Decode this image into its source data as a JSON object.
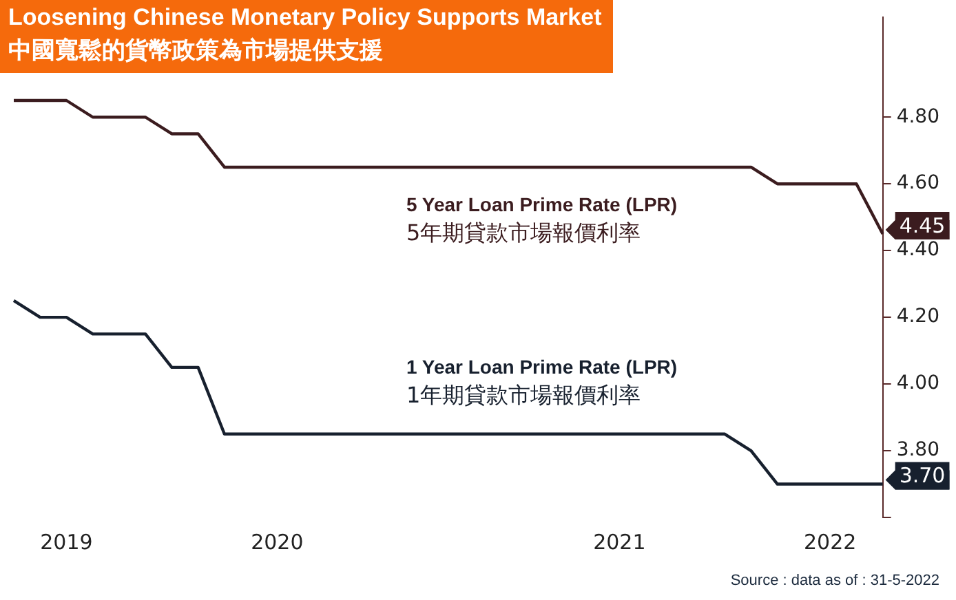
{
  "chart_data": {
    "type": "line",
    "title": "Loosening Chinese Monetary Policy Supports Market",
    "subtitle": "中國寬鬆的貨幣政策為市場提供支援",
    "categories": [
      null,
      null,
      "2019",
      null,
      null,
      null,
      null,
      null,
      null,
      null,
      "2020",
      null,
      null,
      null,
      null,
      null,
      null,
      null,
      null,
      null,
      null,
      null,
      null,
      "2021",
      null,
      null,
      null,
      null,
      null,
      null,
      null,
      "2022",
      null,
      null
    ],
    "series": [
      {
        "name": "5 Year Loan Prime Rate (LPR)\n5年期貸款市場報價利率",
        "color": "#3b1c1f",
        "values": [
          4.85,
          4.85,
          4.85,
          4.8,
          4.8,
          4.8,
          4.75,
          4.75,
          4.65,
          4.65,
          4.65,
          4.65,
          4.65,
          4.65,
          4.65,
          4.65,
          4.65,
          4.65,
          4.65,
          4.65,
          4.65,
          4.65,
          4.65,
          4.65,
          4.65,
          4.65,
          4.65,
          4.65,
          4.65,
          4.6,
          4.6,
          4.6,
          4.6,
          4.45
        ],
        "value_labels": [
          null,
          null,
          null,
          null,
          null,
          null,
          null,
          null,
          null,
          null,
          null,
          null,
          null,
          null,
          null,
          null,
          null,
          null,
          null,
          null,
          null,
          null,
          null,
          null,
          null,
          null,
          null,
          null,
          null,
          null,
          null,
          null,
          null,
          "4.45"
        ]
      },
      {
        "name": "1 Year Loan Prime Rate (LPR)\n1年期貸款市場報價利率",
        "color": "#17202e",
        "values": [
          4.25,
          4.2,
          4.2,
          4.15,
          4.15,
          4.15,
          4.05,
          4.05,
          3.85,
          3.85,
          3.85,
          3.85,
          3.85,
          3.85,
          3.85,
          3.85,
          3.85,
          3.85,
          3.85,
          3.85,
          3.85,
          3.85,
          3.85,
          3.85,
          3.85,
          3.85,
          3.85,
          3.85,
          3.8,
          3.7,
          3.7,
          3.7,
          3.7,
          3.7
        ],
        "value_labels": [
          null,
          null,
          null,
          null,
          null,
          null,
          null,
          null,
          null,
          null,
          null,
          null,
          null,
          null,
          null,
          null,
          null,
          null,
          null,
          null,
          null,
          null,
          null,
          null,
          null,
          null,
          null,
          null,
          null,
          null,
          null,
          null,
          null,
          "3.70"
        ]
      }
    ],
    "ylim": [
      3.6,
      5.1
    ],
    "yticks": [
      {
        "value": 3.6,
        "label": null
      },
      "3.80",
      "4.00",
      "4.20",
      "4.40",
      "4.60",
      "4.80"
    ],
    "grid": false,
    "legend": false,
    "marker": "none",
    "line_style": "solid",
    "annotations": [
      "Source : data as of : 31-5-2022"
    ]
  }
}
